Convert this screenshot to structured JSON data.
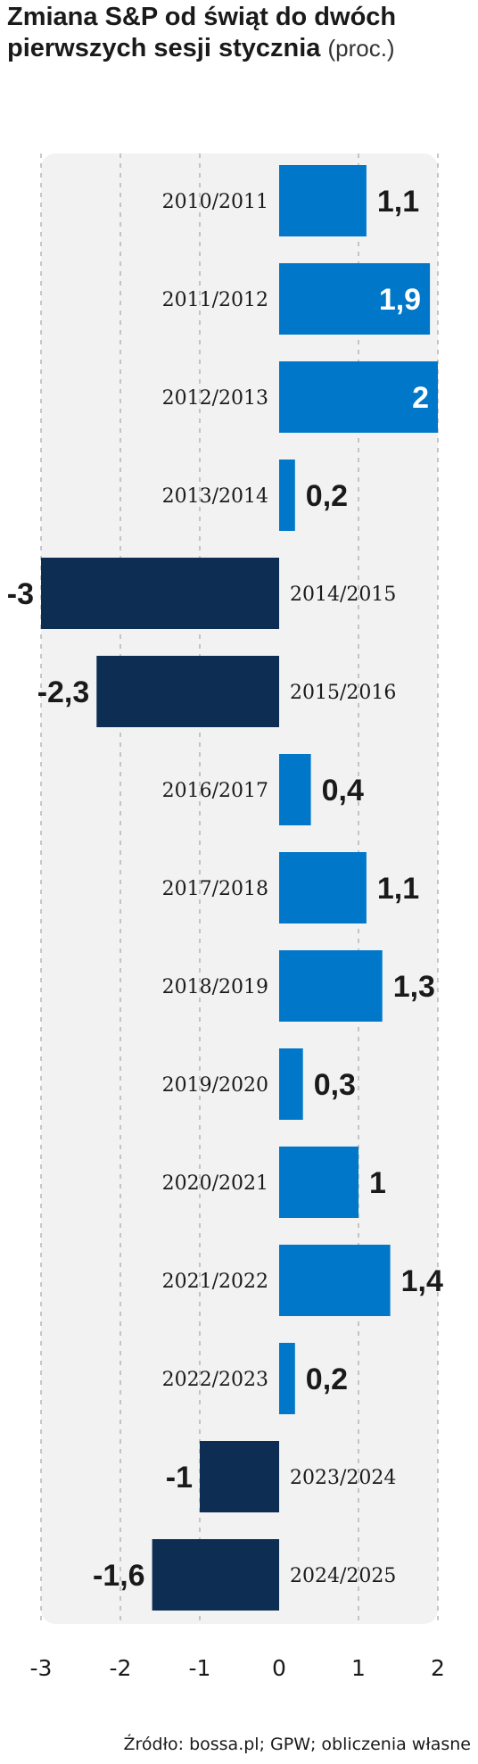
{
  "title": {
    "main": "Zmiana S&P od świąt do dwóch pierwszych sesji stycznia",
    "unit": "(proc.)"
  },
  "source": "Źródło: bossa.pl; GPW; obliczenia własne",
  "colors": {
    "positive": "#0077c8",
    "negative": "#0d2d52",
    "panel": "#f2f2f2",
    "grid": "#b5b5b5",
    "label_dark": "#1a1a1a",
    "label_inside": "#ffffff"
  },
  "chart_data": {
    "type": "bar",
    "orientation": "horizontal",
    "title": "Zmiana S&P od świąt do dwóch pierwszych sesji stycznia",
    "unit": "(proc.)",
    "categories": [
      "2010/2011",
      "2011/2012",
      "2012/2013",
      "2013/2014",
      "2014/2015",
      "2015/2016",
      "2016/2017",
      "2017/2018",
      "2018/2019",
      "2019/2020",
      "2020/2021",
      "2021/2022",
      "2022/2023",
      "2023/2024",
      "2024/2025"
    ],
    "values": [
      1.1,
      1.9,
      2,
      0.2,
      -3,
      -2.3,
      0.4,
      1.1,
      1.3,
      0.3,
      1,
      1.4,
      0.2,
      -1,
      -1.6
    ],
    "value_labels": [
      "1,1",
      "1,9",
      "2",
      "0,2",
      "-3",
      "-2,3",
      "0,4",
      "1,1",
      "1,3",
      "0,3",
      "1",
      "1,4",
      "0,2",
      "-1",
      "-1,6"
    ],
    "label_inside_bar": [
      false,
      true,
      true,
      false,
      false,
      false,
      false,
      false,
      false,
      false,
      false,
      false,
      false,
      false,
      false
    ],
    "xlim": [
      -3,
      2
    ],
    "ticks": [
      -3,
      -2,
      -1,
      0,
      1,
      2
    ],
    "tick_labels": [
      "-3",
      "-2",
      "-1",
      "0",
      "1",
      "2"
    ],
    "grid": "vertical dashed",
    "xlabel": "",
    "ylabel": ""
  }
}
